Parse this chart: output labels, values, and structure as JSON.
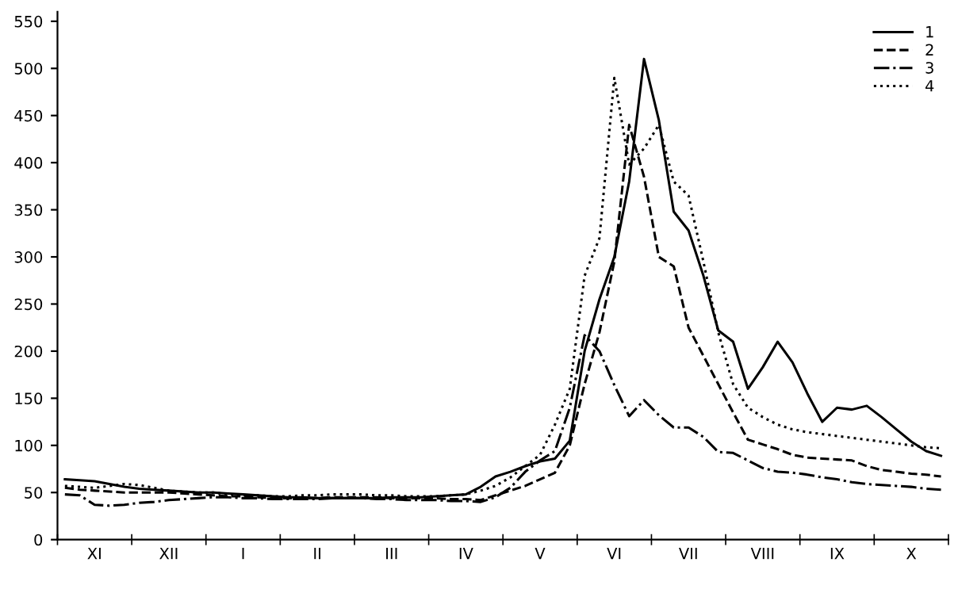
{
  "chart_data": {
    "type": "line",
    "categories": [
      null,
      null,
      "XI",
      null,
      null,
      null,
      null,
      "XII",
      null,
      null,
      null,
      null,
      "I",
      null,
      null,
      null,
      null,
      "II",
      null,
      null,
      null,
      null,
      "III",
      null,
      null,
      null,
      null,
      "IV",
      null,
      null,
      null,
      null,
      "V",
      null,
      null,
      null,
      null,
      "VI",
      null,
      null,
      null,
      null,
      "VII",
      null,
      null,
      null,
      null,
      "VIII",
      null,
      null,
      null,
      null,
      "IX",
      null,
      null,
      null,
      null,
      "X",
      null,
      null
    ],
    "ylim": [
      0,
      560
    ],
    "yticks": [
      0,
      50,
      100,
      150,
      200,
      250,
      300,
      350,
      400,
      450,
      500,
      550
    ],
    "grid": false,
    "legend": "top right",
    "marker": "none",
    "series": [
      {
        "name": "1",
        "color": "#000000",
        "line_style": "solid",
        "values": [
          64,
          63,
          62,
          59,
          56,
          54,
          53,
          52,
          51,
          50,
          50,
          49,
          48,
          47,
          46,
          45,
          45,
          44,
          44,
          44,
          44,
          44,
          45,
          45,
          45,
          46,
          47,
          48,
          56,
          67,
          72,
          78,
          83,
          86,
          105,
          200,
          255,
          300,
          380,
          510,
          445,
          348,
          328,
          280,
          222,
          210,
          160,
          183,
          210,
          188,
          155,
          125,
          140,
          138,
          142,
          130,
          117,
          104,
          94,
          89
        ]
      },
      {
        "name": "2",
        "color": "#000000",
        "line_style": "dashed",
        "values": [
          55,
          53,
          52,
          51,
          50,
          50,
          50,
          50,
          49,
          48,
          47,
          46,
          46,
          45,
          44,
          44,
          44,
          44,
          45,
          45,
          45,
          45,
          44,
          44,
          44,
          44,
          43,
          43,
          42,
          47,
          52,
          57,
          64,
          71,
          100,
          165,
          220,
          295,
          440,
          385,
          300,
          290,
          225,
          195,
          165,
          135,
          106,
          101,
          96,
          90,
          87,
          86,
          85,
          84,
          78,
          74,
          72,
          70,
          69,
          67
        ]
      },
      {
        "name": "3",
        "color": "#000000",
        "line_style": "dashdot",
        "values": [
          48,
          47,
          37,
          36,
          37,
          39,
          40,
          42,
          43,
          44,
          45,
          45,
          44,
          44,
          43,
          43,
          43,
          43,
          44,
          44,
          44,
          43,
          43,
          42,
          42,
          42,
          41,
          41,
          40,
          45,
          55,
          72,
          84,
          94,
          140,
          217,
          200,
          164,
          131,
          148,
          132,
          119,
          119,
          109,
          93,
          92,
          84,
          76,
          72,
          71,
          69,
          66,
          64,
          61,
          59,
          58,
          57,
          56,
          54,
          53
        ]
      },
      {
        "name": "4",
        "color": "#000000",
        "line_style": "dotted",
        "values": [
          57,
          56,
          55,
          57,
          59,
          58,
          55,
          52,
          51,
          50,
          50,
          48,
          47,
          47,
          46,
          46,
          47,
          47,
          48,
          48,
          48,
          47,
          47,
          46,
          46,
          46,
          47,
          48,
          52,
          57,
          66,
          78,
          90,
          122,
          160,
          280,
          320,
          490,
          398,
          415,
          440,
          380,
          365,
          295,
          220,
          165,
          140,
          130,
          122,
          117,
          114,
          112,
          110,
          108,
          106,
          104,
          102,
          100,
          98,
          97
        ]
      }
    ]
  }
}
